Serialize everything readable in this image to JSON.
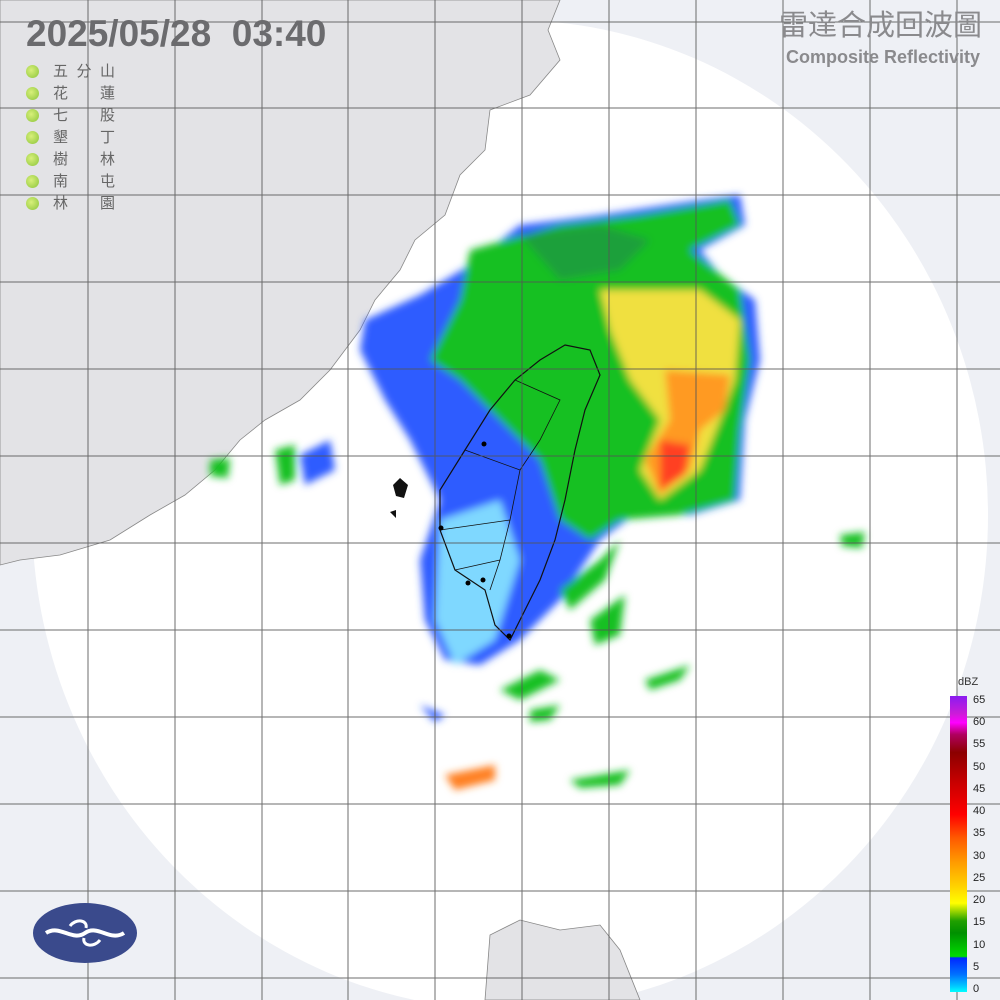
{
  "header": {
    "timestamp": "2025/05/28  03:40",
    "title_zh": "雷達合成回波圖",
    "title_en": "Composite Reflectivity"
  },
  "stations": [
    {
      "left": "五",
      "mid": "分",
      "right": "山"
    },
    {
      "left": "花",
      "mid": "",
      "right": "蓮"
    },
    {
      "left": "七",
      "mid": "",
      "right": "股"
    },
    {
      "left": "墾",
      "mid": "",
      "right": "丁"
    },
    {
      "left": "樹",
      "mid": "",
      "right": "林"
    },
    {
      "left": "南",
      "mid": "",
      "right": "屯"
    },
    {
      "left": "林",
      "mid": "",
      "right": "園"
    }
  ],
  "station_status_color": "#9acd32",
  "legend": {
    "unit": "dBZ",
    "ticks": [
      "65",
      "60",
      "55",
      "50",
      "45",
      "40",
      "35",
      "30",
      "25",
      "20",
      "15",
      "10",
      "5",
      "0"
    ]
  },
  "colors": {
    "land": "#e3e3e6",
    "radar_coverage": "#ffffff",
    "outside_coverage": "#eef0f5",
    "grid": "#555555",
    "logo": "#3a4a8c"
  }
}
